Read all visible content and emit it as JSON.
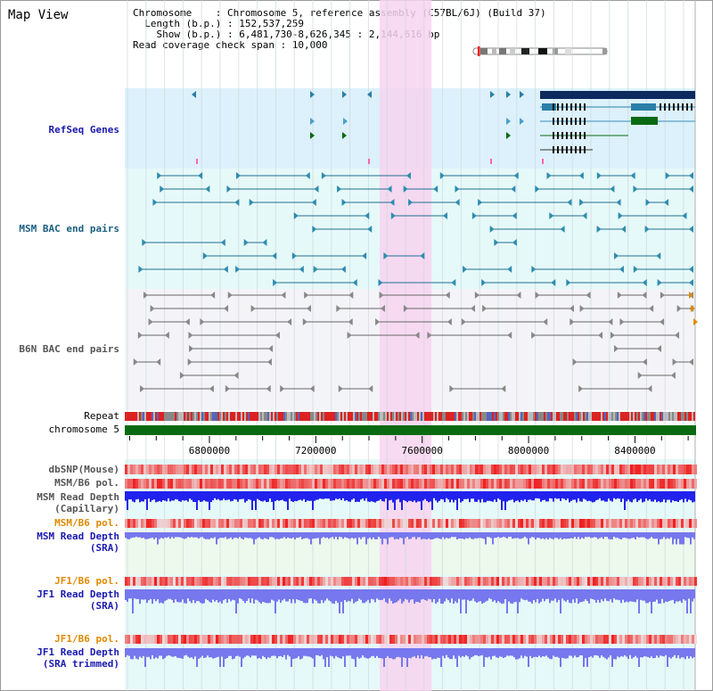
{
  "title": "Map View",
  "info": [
    "Chromosome    : Chromosome 5, reference assembly (C57BL/6J) (Build 37)",
    "  Length (b.p.) : 152,537,259",
    "    Show (b.p.) : 6,481,730-8,626,345 : 2,144,616 bp",
    "Read coverage check span : 10,000"
  ],
  "colors": {
    "refseq_bg": "#dcf1fb",
    "bac_bg": "#e6f9f9",
    "b6n_bg": "#f4f4f8",
    "highlight": "#f7d4f0",
    "refseq_navy": "#0c2a5e",
    "refseq_teal": "#3a8fb7",
    "refseq_green": "#0a6a12",
    "chrom_bar": "#0a6a12",
    "depth_blue": "#2222ee",
    "depth_light": "#7777ee",
    "pol_red": "#ee2222"
  },
  "tracks": {
    "refseq": "RefSeq Genes",
    "msm_bac": "MSM BAC end pairs",
    "b6n_bac": "B6N BAC end pairs",
    "repeat": "Repeat",
    "chromosome": "chromosome 5",
    "dbsnp": "dbSNP(Mouse)",
    "msm_b6_pol_1": "MSM/B6 pol.",
    "msm_depth_cap_1": "MSM Read Depth",
    "msm_depth_cap_2": "(Capillary)",
    "msm_b6_pol_2": "MSM/B6 pol.",
    "msm_depth_sra_1": "MSM Read Depth",
    "msm_depth_sra_2": "(SRA)",
    "jf1_b6_pol_1": "JF1/B6 pol.",
    "jf1_depth_sra_1": "JF1 Read Depth",
    "jf1_depth_sra_2": "(SRA)",
    "jf1_b6_pol_2": "JF1/B6 pol.",
    "jf1_depth_trim_1": "JF1 Read Depth",
    "jf1_depth_trim_2": "(SRA trimmed)"
  },
  "axis": {
    "ticks": [
      "6800000",
      "7200000",
      "7600000",
      "8000000",
      "8400000"
    ],
    "range": [
      6481730,
      8626345
    ],
    "highlight_range": [
      7440000,
      7635000
    ]
  }
}
